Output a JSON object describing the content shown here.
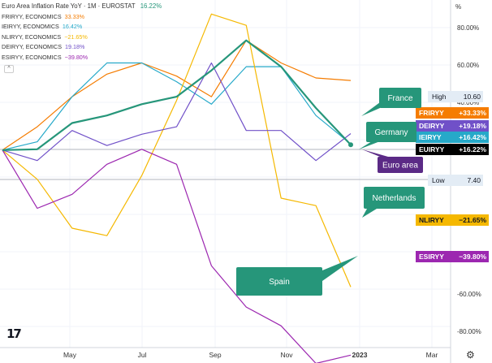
{
  "legend": {
    "title": "Euro Area Inflation Rate YoY · 1M · EUROSTAT",
    "title_value": "16.22%",
    "items": [
      {
        "label": "FRIRYY, ECONOMICS",
        "value": "33.33%",
        "color": "#f57c00"
      },
      {
        "label": "IEIRYY, ECONOMICS",
        "value": "16.42%",
        "color": "#26a9c9"
      },
      {
        "label": "NLIRYY, ECONOMICS",
        "value": "−21.65%",
        "color": "#f5b800"
      },
      {
        "label": "DEIRYY, ECONOMICS",
        "value": "19.18%",
        "color": "#7050c8"
      },
      {
        "label": "ESIRYY, ECONOMICS",
        "value": "−39.80%",
        "color": "#9c27b0"
      }
    ]
  },
  "collapse_glyph": "^",
  "settings_glyph": "⚙",
  "logo_text": "17",
  "chart_data": {
    "type": "line",
    "unit": "%",
    "y_ticks": [
      "80.00%",
      "60.00%",
      "40.00%",
      "-60.00%",
      "-80.00%"
    ],
    "x_ticks": [
      "May",
      "Jul",
      "Sep",
      "Nov",
      "2023",
      "Mar"
    ],
    "series": [
      {
        "name": "FRIRYY",
        "color": "#f57c00",
        "width": 1.2,
        "points": [
          [
            0,
            14.8
          ],
          [
            1,
            21
          ],
          [
            2,
            29
          ],
          [
            3,
            35
          ],
          [
            4,
            38
          ],
          [
            5,
            34.5
          ],
          [
            6,
            29
          ],
          [
            7,
            44
          ],
          [
            8,
            38
          ],
          [
            9,
            34
          ],
          [
            10,
            33.33
          ]
        ]
      },
      {
        "name": "IEIRYY",
        "color": "#26a9c9",
        "width": 1.2,
        "points": [
          [
            0,
            14.8
          ],
          [
            1,
            17
          ],
          [
            2,
            29
          ],
          [
            3,
            38
          ],
          [
            4,
            38
          ],
          [
            5,
            33
          ],
          [
            6,
            27
          ],
          [
            7,
            37
          ],
          [
            8,
            37
          ],
          [
            9,
            24
          ],
          [
            10,
            16.42
          ]
        ]
      },
      {
        "name": "NLIRYY",
        "color": "#f5b800",
        "width": 1.2,
        "points": [
          [
            0,
            14.8
          ],
          [
            1,
            7
          ],
          [
            2,
            -6
          ],
          [
            3,
            -8
          ],
          [
            4,
            8
          ],
          [
            5,
            28
          ],
          [
            6,
            51
          ],
          [
            7,
            48
          ],
          [
            8,
            2
          ],
          [
            9,
            0
          ],
          [
            10,
            -21.65
          ]
        ]
      },
      {
        "name": "DEIRYY",
        "color": "#7050c8",
        "width": 1.2,
        "points": [
          [
            0,
            14.8
          ],
          [
            1,
            12
          ],
          [
            2,
            20
          ],
          [
            3,
            16
          ],
          [
            4,
            19
          ],
          [
            5,
            21
          ],
          [
            6,
            38
          ],
          [
            7,
            20
          ],
          [
            8,
            20
          ],
          [
            9,
            12
          ],
          [
            10,
            19.18
          ]
        ]
      },
      {
        "name": "ESIRYY",
        "color": "#9c27b0",
        "width": 1.2,
        "points": [
          [
            0,
            14.8
          ],
          [
            1,
            -0.7
          ],
          [
            2,
            3
          ],
          [
            3,
            11
          ],
          [
            4,
            15
          ],
          [
            5,
            11
          ],
          [
            6,
            -16
          ],
          [
            7,
            -27
          ],
          [
            8,
            -32
          ],
          [
            9,
            -42
          ],
          [
            10,
            -39.8
          ]
        ]
      },
      {
        "name": "EUIRYY",
        "color": "#26967a",
        "width": 2.2,
        "points": [
          [
            0,
            14.8
          ],
          [
            1,
            15
          ],
          [
            2,
            22
          ],
          [
            3,
            24
          ],
          [
            4,
            27
          ],
          [
            5,
            29
          ],
          [
            6,
            36
          ],
          [
            7,
            44
          ],
          [
            8,
            37
          ],
          [
            9,
            26
          ],
          [
            10,
            16.22
          ]
        ]
      }
    ],
    "price_labels": [
      {
        "text": "High",
        "value": "10.60",
        "style": "plain"
      },
      {
        "text": "FRIRYY",
        "value": "+33.33%",
        "color": "#f57c00"
      },
      {
        "text": "DEIRYY",
        "value": "+19.18%",
        "color": "#7050c8"
      },
      {
        "text": "IEIRYY",
        "value": "+16.42%",
        "color": "#26a9c9"
      },
      {
        "text": "EUIRYY",
        "value": "+16.22%",
        "color": "#000000"
      },
      {
        "text": "Low",
        "value": "7.40",
        "style": "plain"
      },
      {
        "text": "NLIRYY",
        "value": "−21.65%",
        "color": "#f5b800",
        "dark_text": true
      },
      {
        "text": "ESIRYY",
        "value": "−39.80%",
        "color": "#9c27b0"
      }
    ],
    "callouts": [
      {
        "text": "France",
        "color": "#26967a"
      },
      {
        "text": "Germany",
        "color": "#26967a"
      },
      {
        "text": "Euro area",
        "color": "#5b2a86"
      },
      {
        "text": "Netherlands",
        "color": "#26967a"
      },
      {
        "text": "Spain",
        "color": "#26967a"
      }
    ]
  }
}
